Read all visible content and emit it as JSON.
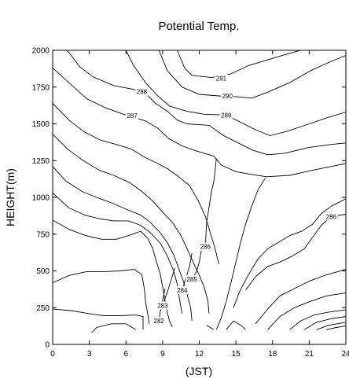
{
  "chart_data": {
    "type": "contour",
    "title": "Potential Temp.",
    "xlabel": "(JST)",
    "ylabel": "HEIGHT(m)",
    "xlim": [
      0,
      24
    ],
    "ylim": [
      0,
      2000
    ],
    "xticks": [
      0,
      3,
      6,
      9,
      12,
      15,
      18,
      21,
      24
    ],
    "yticks": [
      0,
      250,
      500,
      750,
      1000,
      1250,
      1500,
      1750,
      2000
    ],
    "contours": [
      {
        "label": "291",
        "label_at": [
          13.8,
          1810
        ],
        "points": [
          [
            10.2,
            2000
          ],
          [
            10.8,
            1880
          ],
          [
            11.4,
            1830
          ],
          [
            13.0,
            1815
          ],
          [
            14.6,
            1840
          ],
          [
            16.0,
            1895
          ],
          [
            17.8,
            1940
          ],
          [
            19.6,
            1985
          ],
          [
            20.3,
            2000
          ]
        ]
      },
      {
        "label": "290",
        "label_at": [
          14.3,
          1690
        ],
        "points": [
          [
            8.7,
            2000
          ],
          [
            9.4,
            1860
          ],
          [
            10.6,
            1750
          ],
          [
            12.0,
            1700
          ],
          [
            13.6,
            1690
          ],
          [
            15.0,
            1685
          ],
          [
            16.3,
            1675
          ],
          [
            17.6,
            1715
          ],
          [
            19.4,
            1780
          ],
          [
            21.2,
            1865
          ],
          [
            22.8,
            1925
          ],
          [
            24,
            1965
          ]
        ]
      },
      {
        "label": "289",
        "label_at": [
          14.2,
          1560
        ],
        "points": [
          [
            6.0,
            2000
          ],
          [
            6.6,
            1900
          ],
          [
            7.6,
            1780
          ],
          [
            8.6,
            1690
          ],
          [
            9.6,
            1620
          ],
          [
            11.0,
            1585
          ],
          [
            12.4,
            1565
          ],
          [
            14.2,
            1560
          ],
          [
            15.4,
            1510
          ],
          [
            16.6,
            1460
          ],
          [
            17.8,
            1420
          ],
          [
            19.2,
            1450
          ],
          [
            21.0,
            1500
          ],
          [
            22.6,
            1545
          ],
          [
            24,
            1580
          ]
        ]
      },
      {
        "label": "288",
        "label_at": [
          7.3,
          1720
        ],
        "points": [
          [
            1.2,
            2000
          ],
          [
            2.2,
            1890
          ],
          [
            3.3,
            1820
          ],
          [
            5.0,
            1760
          ],
          [
            6.6,
            1735
          ],
          [
            7.7,
            1700
          ],
          [
            8.4,
            1640
          ],
          [
            9.4,
            1585
          ],
          [
            10.2,
            1525
          ],
          [
            11.0,
            1500
          ],
          [
            12.8,
            1490
          ],
          [
            14.0,
            1420
          ],
          [
            15.2,
            1370
          ],
          [
            16.4,
            1320
          ],
          [
            17.6,
            1290
          ],
          [
            19.0,
            1300
          ],
          [
            21.0,
            1340
          ],
          [
            22.8,
            1360
          ],
          [
            24,
            1370
          ]
        ]
      },
      {
        "label": "287",
        "label_at": [
          6.5,
          1555
        ],
        "points": [
          [
            0,
            1880
          ],
          [
            1.6,
            1760
          ],
          [
            2.8,
            1670
          ],
          [
            4.3,
            1610
          ],
          [
            5.8,
            1565
          ],
          [
            7.6,
            1520
          ],
          [
            8.6,
            1470
          ],
          [
            9.5,
            1400
          ],
          [
            10.6,
            1350
          ],
          [
            11.6,
            1320
          ],
          [
            13.2,
            1280
          ],
          [
            13.8,
            1220
          ],
          [
            15.0,
            1175
          ],
          [
            16.0,
            1160
          ],
          [
            17.5,
            1140
          ],
          [
            19.4,
            1150
          ],
          [
            21.3,
            1185
          ],
          [
            22.8,
            1210
          ],
          [
            24,
            1230
          ]
        ]
      },
      {
        "label": "",
        "label_at": null,
        "points": [
          [
            0,
            1640
          ],
          [
            1.4,
            1520
          ],
          [
            2.6,
            1445
          ],
          [
            3.9,
            1390
          ],
          [
            5.2,
            1360
          ],
          [
            6.4,
            1330
          ],
          [
            7.6,
            1270
          ],
          [
            8.6,
            1230
          ],
          [
            9.4,
            1195
          ],
          [
            10.4,
            1135
          ],
          [
            11.2,
            1080
          ],
          [
            11.9,
            980
          ],
          [
            12.5,
            870
          ],
          [
            12.9,
            760
          ],
          [
            13.3,
            650
          ],
          [
            13.6,
            545
          ]
        ]
      },
      {
        "label": "286",
        "label_at": [
          12.5,
          665
        ],
        "points": [
          [
            13.4,
            1265
          ],
          [
            13.2,
            1110
          ],
          [
            13.0,
            1040
          ],
          [
            12.8,
            930
          ],
          [
            12.6,
            830
          ],
          [
            12.5,
            665
          ]
        ]
      },
      {
        "label": "",
        "label_at": null,
        "points": [
          [
            0,
            1430
          ],
          [
            1.2,
            1330
          ],
          [
            2.5,
            1250
          ],
          [
            3.8,
            1185
          ],
          [
            5.0,
            1150
          ],
          [
            6.3,
            1100
          ],
          [
            7.3,
            1040
          ],
          [
            8.2,
            975
          ],
          [
            9.0,
            900
          ],
          [
            9.8,
            830
          ],
          [
            10.5,
            740
          ],
          [
            11.0,
            650
          ],
          [
            11.5,
            560
          ],
          [
            12.0,
            470
          ],
          [
            12.4,
            390
          ],
          [
            12.7,
            300
          ],
          [
            12.8,
            210
          ]
        ]
      },
      {
        "label": "",
        "label_at": null,
        "points": [
          [
            0,
            1210
          ],
          [
            1.1,
            1110
          ],
          [
            2.4,
            1040
          ],
          [
            3.6,
            1000
          ],
          [
            4.9,
            960
          ],
          [
            6.0,
            920
          ],
          [
            7.2,
            880
          ],
          [
            8.0,
            830
          ],
          [
            8.8,
            760
          ],
          [
            9.4,
            690
          ],
          [
            9.9,
            610
          ],
          [
            10.3,
            520
          ],
          [
            10.7,
            430
          ],
          [
            11.0,
            340
          ],
          [
            11.3,
            250
          ],
          [
            11.4,
            160
          ]
        ]
      },
      {
        "label": "285",
        "label_at": [
          11.4,
          445
        ],
        "points": [
          [
            12.2,
            650
          ],
          [
            12.0,
            560
          ],
          [
            11.8,
            500
          ],
          [
            11.4,
            445
          ]
        ]
      },
      {
        "label": "",
        "label_at": null,
        "points": [
          [
            0,
            1030
          ],
          [
            1.3,
            930
          ],
          [
            2.6,
            880
          ],
          [
            3.8,
            855
          ],
          [
            5.0,
            840
          ],
          [
            6.2,
            840
          ],
          [
            7.2,
            810
          ],
          [
            8.0,
            760
          ],
          [
            8.8,
            690
          ],
          [
            9.4,
            600
          ],
          [
            9.9,
            500
          ],
          [
            10.2,
            410
          ],
          [
            10.4,
            300
          ],
          [
            10.6,
            210
          ]
        ]
      },
      {
        "label": "284",
        "label_at": [
          10.6,
          370
        ],
        "points": [
          [
            11.4,
            620
          ],
          [
            11.2,
            530
          ],
          [
            10.9,
            450
          ],
          [
            10.6,
            370
          ]
        ]
      },
      {
        "label": "",
        "label_at": null,
        "points": [
          [
            0,
            845
          ],
          [
            1.4,
            780
          ],
          [
            2.7,
            740
          ],
          [
            4.0,
            715
          ],
          [
            5.2,
            715
          ],
          [
            6.4,
            745
          ],
          [
            7.2,
            770
          ],
          [
            7.8,
            720
          ],
          [
            8.2,
            650
          ],
          [
            8.5,
            560
          ],
          [
            8.8,
            480
          ],
          [
            9.0,
            390
          ],
          [
            9.2,
            300
          ],
          [
            9.4,
            210
          ],
          [
            9.6,
            150
          ],
          [
            9.8,
            120
          ]
        ]
      },
      {
        "label": "283",
        "label_at": [
          9.0,
          265
        ],
        "points": [
          [
            10.0,
            520
          ],
          [
            9.7,
            440
          ],
          [
            9.4,
            360
          ],
          [
            9.0,
            265
          ]
        ]
      },
      {
        "label": "282",
        "label_at": [
          8.7,
          160
        ],
        "points": [
          [
            9.2,
            380
          ],
          [
            9.0,
            300
          ],
          [
            8.8,
            220
          ],
          [
            8.7,
            160
          ]
        ]
      },
      {
        "label": "",
        "label_at": null,
        "points": [
          [
            0,
            420
          ],
          [
            1.4,
            470
          ],
          [
            2.8,
            495
          ],
          [
            4.2,
            495
          ],
          [
            5.5,
            500
          ],
          [
            6.7,
            510
          ],
          [
            7.3,
            475
          ],
          [
            7.5,
            380
          ],
          [
            7.6,
            290
          ],
          [
            7.8,
            200
          ],
          [
            7.9,
            140
          ]
        ]
      },
      {
        "label": "",
        "label_at": null,
        "points": [
          [
            0,
            240
          ],
          [
            1.5,
            230
          ],
          [
            2.9,
            210
          ],
          [
            4.2,
            195
          ],
          [
            5.5,
            195
          ],
          [
            6.8,
            200
          ],
          [
            7.4,
            190
          ],
          [
            7.4,
            100
          ]
        ]
      },
      {
        "label": "",
        "label_at": null,
        "points": [
          [
            3.2,
            80
          ],
          [
            3.6,
            115
          ],
          [
            4.8,
            140
          ],
          [
            6.0,
            140
          ],
          [
            6.8,
            100
          ]
        ]
      },
      {
        "label": "",
        "label_at": null,
        "points": [
          [
            13.4,
            100
          ],
          [
            13.8,
            180
          ],
          [
            14.2,
            290
          ],
          [
            14.6,
            420
          ],
          [
            15.0,
            560
          ],
          [
            15.4,
            700
          ],
          [
            15.8,
            820
          ],
          [
            16.3,
            940
          ],
          [
            16.8,
            1050
          ],
          [
            17.4,
            1130
          ]
        ]
      },
      {
        "label": "",
        "label_at": null,
        "points": [
          [
            14.8,
            250
          ],
          [
            15.3,
            360
          ],
          [
            16.0,
            470
          ],
          [
            16.8,
            580
          ],
          [
            17.6,
            650
          ],
          [
            18.4,
            690
          ],
          [
            19.4,
            740
          ],
          [
            20.4,
            770
          ],
          [
            21.3,
            820
          ],
          [
            22.0,
            890
          ],
          [
            22.8,
            940
          ],
          [
            24,
            990
          ]
        ]
      },
      {
        "label": "286",
        "label_at": [
          22.8,
          870
        ],
        "points": [
          [
            15.8,
            370
          ],
          [
            16.6,
            460
          ],
          [
            17.6,
            530
          ],
          [
            18.6,
            560
          ],
          [
            19.6,
            600
          ],
          [
            20.6,
            650
          ],
          [
            21.2,
            720
          ],
          [
            22.0,
            810
          ],
          [
            22.8,
            870
          ],
          [
            24,
            885
          ]
        ]
      },
      {
        "label": "",
        "label_at": null,
        "points": [
          [
            16.6,
            140
          ],
          [
            17.6,
            240
          ],
          [
            18.6,
            330
          ],
          [
            19.8,
            380
          ],
          [
            21.0,
            430
          ],
          [
            22.3,
            470
          ],
          [
            24,
            510
          ]
        ]
      },
      {
        "label": "",
        "label_at": null,
        "points": [
          [
            17.6,
            100
          ],
          [
            18.6,
            190
          ],
          [
            19.8,
            250
          ],
          [
            21.0,
            290
          ],
          [
            22.4,
            330
          ],
          [
            24,
            350
          ]
        ]
      },
      {
        "label": "",
        "label_at": null,
        "points": [
          [
            19.4,
            100
          ],
          [
            20.3,
            160
          ],
          [
            21.4,
            200
          ],
          [
            22.6,
            220
          ],
          [
            24,
            235
          ]
        ]
      },
      {
        "label": "",
        "label_at": null,
        "points": [
          [
            20.6,
            100
          ],
          [
            21.6,
            150
          ],
          [
            22.8,
            175
          ],
          [
            24,
            190
          ]
        ]
      },
      {
        "label": "",
        "label_at": null,
        "points": [
          [
            21.6,
            100
          ],
          [
            22.6,
            130
          ],
          [
            24,
            150
          ]
        ]
      },
      {
        "label": "",
        "label_at": null,
        "points": [
          [
            22.4,
            100
          ],
          [
            23.2,
            115
          ],
          [
            24,
            125
          ]
        ]
      },
      {
        "label": "",
        "label_at": null,
        "points": [
          [
            14.2,
            100
          ],
          [
            14.8,
            160
          ],
          [
            15.4,
            130
          ],
          [
            15.8,
            100
          ]
        ]
      },
      {
        "label": "",
        "label_at": null,
        "points": [
          [
            12.6,
            130
          ],
          [
            13.0,
            110
          ],
          [
            13.2,
            100
          ]
        ]
      }
    ]
  }
}
